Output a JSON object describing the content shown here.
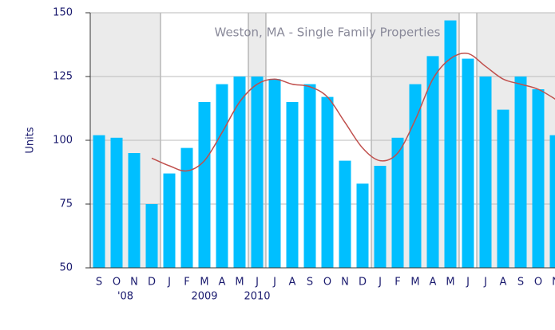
{
  "chart_data": {
    "type": "bar",
    "title": "Weston, MA - Single Family Properties",
    "y_label": "Units",
    "categories": [
      "S",
      "O",
      "N",
      "D",
      "J",
      "F",
      "M",
      "A",
      "M",
      "J",
      "J",
      "A",
      "S",
      "O",
      "N",
      "D",
      "J",
      "F",
      "M",
      "A",
      "M",
      "J",
      "J",
      "A",
      "S",
      "O",
      "N"
    ],
    "year_labels": [
      "'08",
      "2009",
      "2010"
    ],
    "series": [
      {
        "type": "bar",
        "color": "#00bfff",
        "values": [
          102,
          101,
          95,
          75,
          87,
          97,
          115,
          122,
          125,
          125,
          124,
          115,
          122,
          117,
          92,
          83,
          90,
          101,
          122,
          133,
          147,
          132,
          125,
          112,
          125,
          120,
          102
        ]
      },
      {
        "type": "line",
        "color": "#c0504d",
        "values": [
          null,
          null,
          null,
          93,
          90,
          88,
          92,
          103,
          115,
          122,
          124,
          122,
          121,
          117,
          107,
          97,
          92,
          95,
          108,
          124,
          132,
          134,
          129,
          124,
          122,
          120,
          116
        ]
      }
    ],
    "ylim": [
      50,
      150
    ],
    "yticks": [
      50,
      75,
      100,
      125,
      150
    ],
    "grid": true
  }
}
